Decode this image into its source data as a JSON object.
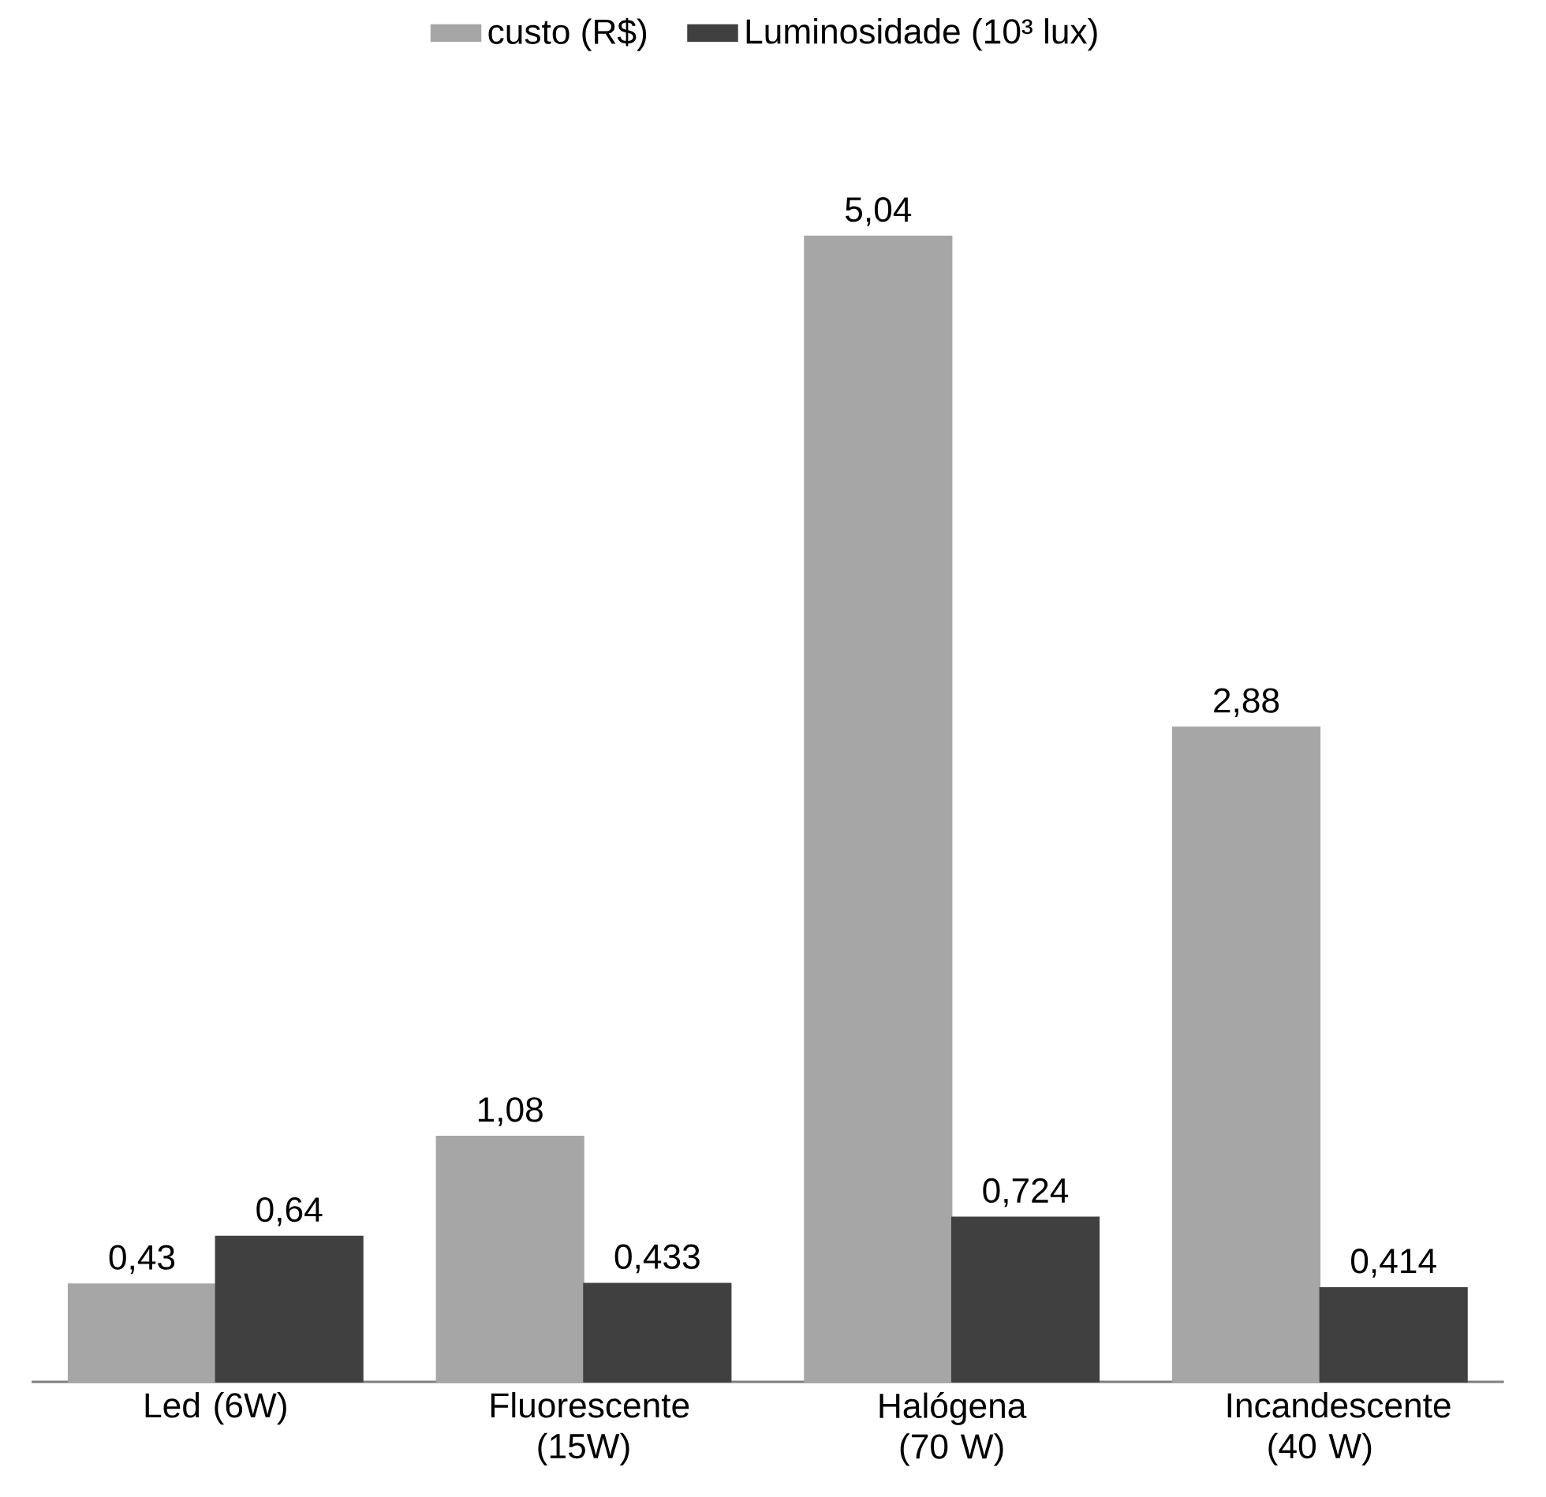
{
  "chart_data": {
    "type": "bar",
    "categories": [
      "Led (6W)",
      "Fluorescente (15W)",
      "Halógena (70 W)",
      "Incandescente (40 W)"
    ],
    "series": [
      {
        "name": "custo (R$)",
        "color": "#a6a6a6",
        "values": [
          0.43,
          1.08,
          5.04,
          2.88
        ],
        "value_labels": [
          "0,43",
          "1,08",
          "5,04",
          "2,88"
        ]
      },
      {
        "name": "Luminosidade (10³ lux)",
        "color": "#404040",
        "values": [
          0.64,
          0.433,
          0.724,
          0.414
        ],
        "value_labels": [
          "0,64",
          "0,433",
          "0,724",
          "0,414"
        ]
      }
    ],
    "legend": "top"
  }
}
